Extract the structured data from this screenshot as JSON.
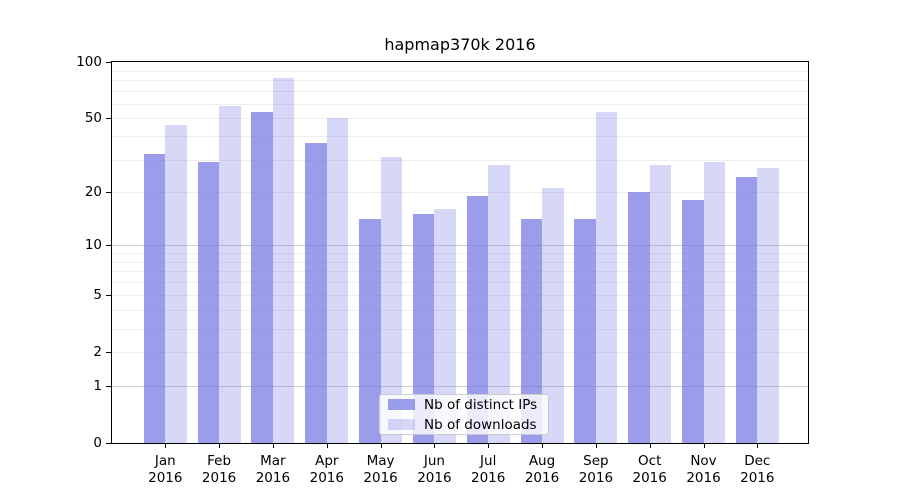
{
  "chart_data": {
    "type": "bar",
    "title": "hapmap370k 2016",
    "categories": [
      "Jan 2016",
      "Feb 2016",
      "Mar 2016",
      "Apr 2016",
      "May 2016",
      "Jun 2016",
      "Jul 2016",
      "Aug 2016",
      "Sep 2016",
      "Oct 2016",
      "Nov 2016",
      "Dec 2016"
    ],
    "series": [
      {
        "name": "Nb of distinct IPs",
        "color": "rgba(112,116,226,0.7)",
        "values": [
          32,
          29,
          54,
          37,
          14,
          15,
          19,
          14,
          14,
          20,
          18,
          24
        ]
      },
      {
        "name": "Nb of downloads",
        "color": "rgba(112,116,226,0.28)",
        "values": [
          46,
          58,
          82,
          50,
          31,
          16,
          28,
          21,
          54,
          28,
          29,
          27
        ]
      }
    ],
    "y_axis": {
      "scale": "log1p",
      "range": [
        0,
        100
      ],
      "ticks": [
        0,
        1,
        2,
        5,
        10,
        20,
        50,
        100
      ],
      "tick_labels": [
        "0",
        "1",
        "2",
        "5",
        "10",
        "20",
        "50",
        "100"
      ]
    },
    "x_axis": {
      "tick_labels_line1": [
        "Jan",
        "Feb",
        "Mar",
        "Apr",
        "May",
        "Jun",
        "Jul",
        "Aug",
        "Sep",
        "Oct",
        "Nov",
        "Dec"
      ],
      "tick_labels_line2": "2016"
    },
    "grid": {
      "on": true,
      "major_lines_at": [
        1,
        10
      ],
      "minor_lines_at": [
        2,
        3,
        4,
        5,
        6,
        7,
        8,
        9,
        20,
        30,
        40,
        50,
        60,
        70,
        80,
        90
      ]
    },
    "legend": {
      "position": "lower center",
      "entries": [
        "Nb of distinct IPs",
        "Nb of downloads"
      ]
    }
  },
  "colors": {
    "bar_dark": "rgba(112,116,226,0.7)",
    "bar_light": "rgba(112,116,226,0.28)",
    "grid_major": "#d0d0d0",
    "grid_minor": "#eeeeef",
    "axis": "#000000",
    "legend_bg": "rgba(255,255,255,0.8)",
    "legend_border": "#cccccc",
    "background": "#ffffff"
  }
}
